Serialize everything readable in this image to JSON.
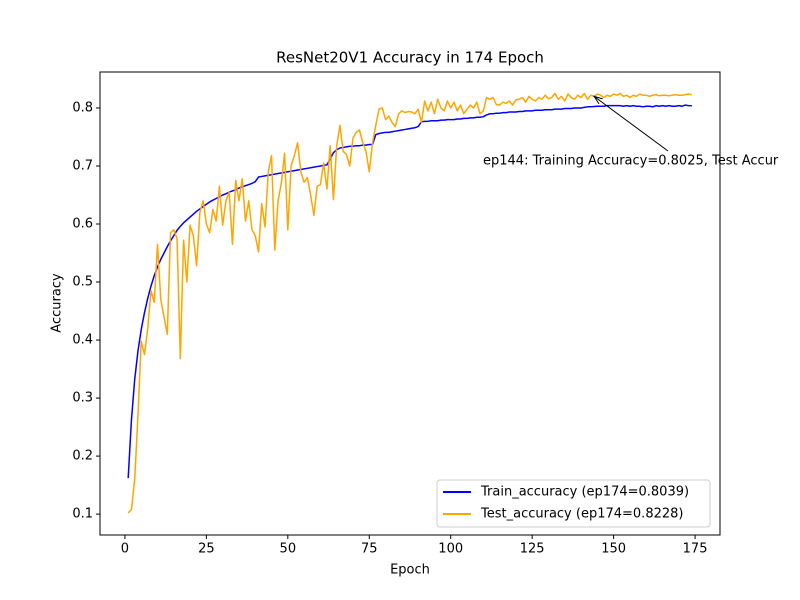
{
  "chart_data": {
    "type": "line",
    "title": "ResNet20V1 Accuracy in 174 Epoch",
    "x_label": "Epoch",
    "y_label": "Accuracy",
    "x": [
      1,
      2,
      3,
      4,
      5,
      6,
      7,
      8,
      9,
      10,
      11,
      12,
      13,
      14,
      15,
      16,
      17,
      18,
      19,
      20,
      21,
      22,
      23,
      24,
      25,
      26,
      27,
      28,
      29,
      30,
      31,
      32,
      33,
      34,
      35,
      36,
      37,
      38,
      39,
      40,
      41,
      42,
      43,
      44,
      45,
      46,
      47,
      48,
      49,
      50,
      51,
      52,
      53,
      54,
      55,
      56,
      57,
      58,
      59,
      60,
      61,
      62,
      63,
      64,
      65,
      66,
      67,
      68,
      69,
      70,
      71,
      72,
      73,
      74,
      75,
      76,
      77,
      78,
      79,
      80,
      81,
      82,
      83,
      84,
      85,
      86,
      87,
      88,
      89,
      90,
      91,
      92,
      93,
      94,
      95,
      96,
      97,
      98,
      99,
      100,
      101,
      102,
      103,
      104,
      105,
      106,
      107,
      108,
      109,
      110,
      111,
      112,
      113,
      114,
      115,
      116,
      117,
      118,
      119,
      120,
      121,
      122,
      123,
      124,
      125,
      126,
      127,
      128,
      129,
      130,
      131,
      132,
      133,
      134,
      135,
      136,
      137,
      138,
      139,
      140,
      141,
      142,
      143,
      144,
      145,
      146,
      147,
      148,
      149,
      150,
      151,
      152,
      153,
      154,
      155,
      156,
      157,
      158,
      159,
      160,
      161,
      162,
      163,
      164,
      165,
      166,
      167,
      168,
      169,
      170,
      171,
      172,
      173,
      174
    ],
    "series": [
      {
        "name": "Train_accuracy (ep174=0.8039)",
        "color": "#0000ff",
        "values": [
          0.162,
          0.262,
          0.332,
          0.381,
          0.418,
          0.447,
          0.472,
          0.493,
          0.511,
          0.526,
          0.539,
          0.55,
          0.561,
          0.571,
          0.58,
          0.589,
          0.596,
          0.602,
          0.607,
          0.612,
          0.617,
          0.622,
          0.626,
          0.63,
          0.634,
          0.638,
          0.641,
          0.644,
          0.647,
          0.65,
          0.652,
          0.655,
          0.657,
          0.659,
          0.662,
          0.664,
          0.666,
          0.668,
          0.67,
          0.673,
          0.681,
          0.682,
          0.683,
          0.684,
          0.685,
          0.686,
          0.687,
          0.688,
          0.689,
          0.69,
          0.691,
          0.692,
          0.693,
          0.694,
          0.695,
          0.696,
          0.697,
          0.698,
          0.699,
          0.7,
          0.701,
          0.702,
          0.712,
          0.723,
          0.728,
          0.731,
          0.732,
          0.733,
          0.734,
          0.734,
          0.735,
          0.735,
          0.736,
          0.736,
          0.737,
          0.737,
          0.754,
          0.756,
          0.757,
          0.758,
          0.758,
          0.759,
          0.76,
          0.761,
          0.762,
          0.763,
          0.764,
          0.765,
          0.766,
          0.768,
          0.776,
          0.777,
          0.777,
          0.778,
          0.778,
          0.778,
          0.779,
          0.779,
          0.78,
          0.78,
          0.78,
          0.781,
          0.781,
          0.782,
          0.782,
          0.783,
          0.783,
          0.784,
          0.784,
          0.785,
          0.788,
          0.79,
          0.79,
          0.791,
          0.791,
          0.792,
          0.792,
          0.793,
          0.793,
          0.793,
          0.794,
          0.794,
          0.795,
          0.795,
          0.795,
          0.796,
          0.796,
          0.796,
          0.797,
          0.797,
          0.797,
          0.798,
          0.798,
          0.798,
          0.799,
          0.799,
          0.799,
          0.8,
          0.8,
          0.8,
          0.801,
          0.802,
          0.802,
          0.8025,
          0.803,
          0.803,
          0.803,
          0.804,
          0.804,
          0.804,
          0.804,
          0.804,
          0.803,
          0.804,
          0.803,
          0.804,
          0.803,
          0.803,
          0.802,
          0.803,
          0.803,
          0.802,
          0.804,
          0.803,
          0.804,
          0.803,
          0.804,
          0.803,
          0.803,
          0.804,
          0.803,
          0.805,
          0.804,
          0.8039
        ]
      },
      {
        "name": "Test_accuracy (ep174=0.8228)",
        "color": "#ffa500",
        "values": [
          0.102,
          0.108,
          0.16,
          0.27,
          0.398,
          0.375,
          0.42,
          0.485,
          0.465,
          0.565,
          0.47,
          0.44,
          0.41,
          0.585,
          0.59,
          0.575,
          0.368,
          0.572,
          0.5,
          0.598,
          0.58,
          0.528,
          0.62,
          0.64,
          0.6,
          0.585,
          0.625,
          0.605,
          0.665,
          0.598,
          0.64,
          0.655,
          0.565,
          0.675,
          0.64,
          0.678,
          0.605,
          0.64,
          0.59,
          0.58,
          0.552,
          0.635,
          0.595,
          0.69,
          0.718,
          0.555,
          0.64,
          0.67,
          0.722,
          0.59,
          0.7,
          0.718,
          0.74,
          0.69,
          0.672,
          0.68,
          0.65,
          0.615,
          0.665,
          0.668,
          0.705,
          0.66,
          0.735,
          0.642,
          0.735,
          0.77,
          0.725,
          0.72,
          0.7,
          0.748,
          0.758,
          0.762,
          0.74,
          0.725,
          0.69,
          0.74,
          0.77,
          0.798,
          0.8,
          0.78,
          0.786,
          0.775,
          0.768,
          0.79,
          0.795,
          0.792,
          0.794,
          0.793,
          0.79,
          0.798,
          0.775,
          0.812,
          0.795,
          0.81,
          0.79,
          0.815,
          0.8,
          0.795,
          0.812,
          0.8,
          0.81,
          0.795,
          0.805,
          0.79,
          0.798,
          0.805,
          0.8,
          0.81,
          0.79,
          0.795,
          0.818,
          0.815,
          0.818,
          0.806,
          0.805,
          0.81,
          0.808,
          0.812,
          0.805,
          0.814,
          0.815,
          0.818,
          0.81,
          0.82,
          0.815,
          0.812,
          0.818,
          0.815,
          0.822,
          0.816,
          0.818,
          0.825,
          0.815,
          0.82,
          0.812,
          0.824,
          0.818,
          0.815,
          0.822,
          0.818,
          0.825,
          0.815,
          0.822,
          0.82,
          0.824,
          0.822,
          0.818,
          0.822,
          0.82,
          0.824,
          0.822,
          0.825,
          0.82,
          0.822,
          0.818,
          0.822,
          0.82,
          0.824,
          0.822,
          0.822,
          0.82,
          0.822,
          0.823,
          0.821,
          0.822,
          0.822,
          0.821,
          0.822,
          0.823,
          0.822,
          0.822,
          0.823,
          0.824,
          0.8228
        ]
      }
    ],
    "annotation": {
      "text": "ep144: Training Accuracy=0.8025, Test Accur",
      "x": 144
    },
    "xlim": [
      -7.65,
      182.65
    ],
    "ylim": [
      0.064,
      0.862
    ],
    "xticks": [
      0,
      25,
      50,
      75,
      100,
      125,
      150,
      175
    ],
    "yticks": [
      0.1,
      0.2,
      0.3,
      0.4,
      0.5,
      0.6,
      0.7,
      0.8
    ],
    "legend": "lower right",
    "grid": false
  }
}
